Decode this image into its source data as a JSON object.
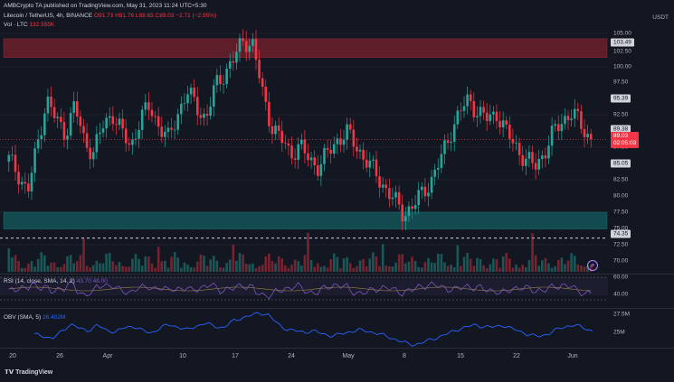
{
  "header": {
    "publisher_line": "AMBCrypto  TA published on TradingView.com, May 31, 2023 11:24 UTC+5:30",
    "symbol": "Litecoin / TetherUS, 4h, BINANCE",
    "ohlc": "O91.73  H91.76  L88.65  C89.03  −2.71 (−2.95%)",
    "volume_label": "Vol · LTC",
    "volume_value": "132.555K",
    "currency": "USDT"
  },
  "price_axis": {
    "ticks": [
      "105.00",
      "102.50",
      "100.00",
      "97.50",
      "92.50",
      "87.50",
      "82.50",
      "80.00",
      "77.50",
      "75.00",
      "72.50",
      "70.00"
    ],
    "tag_resistance": "103.49",
    "tag_95": "95.39",
    "tag_89": "89.38",
    "tag_current_price": "89.03",
    "tag_countdown": "02:05:03",
    "tag_85": "85.05",
    "tag_support": "74.35"
  },
  "rsi": {
    "legend": "RSI (14, close, SMA, 14, 2)",
    "value": "43.70  48.00",
    "ticks": [
      "60.00",
      "40.00"
    ]
  },
  "obv": {
    "legend": "OBV (SMA, 5)",
    "value": "26.402M",
    "ticks": [
      "27.5M",
      "25M"
    ]
  },
  "time_axis": [
    "20",
    "26",
    "Apr",
    "10",
    "17",
    "24",
    "May",
    "8",
    "15",
    "22",
    "Jun"
  ],
  "branding": "TradingView",
  "colors": {
    "up": "#26a69a",
    "down": "#f23645",
    "rsi": "#7e57c2",
    "obv": "#2962ff",
    "resistance_zone": "#5d1e2a",
    "support_zone": "#124a4f"
  },
  "chart_data": {
    "type": "candlestick",
    "price_range": [
      70,
      106
    ],
    "resistance_zone": [
      101.2,
      104.0
    ],
    "support_zone": [
      75.7,
      78.2
    ],
    "dashed_line": 74.35,
    "close_series": [
      86,
      84,
      81,
      88,
      95,
      92,
      90,
      94,
      89,
      87,
      91,
      93,
      90,
      88,
      92,
      94,
      91,
      89,
      93,
      96,
      94,
      92,
      97,
      99,
      101,
      104,
      103,
      96,
      91,
      89,
      87,
      88,
      86,
      85,
      87,
      89,
      90,
      88,
      86,
      84,
      82,
      80,
      78,
      79,
      81,
      83,
      86,
      90,
      93,
      95,
      93,
      92,
      93,
      90,
      88,
      86,
      85,
      87,
      90,
      92,
      93,
      91,
      89.03
    ]
  }
}
